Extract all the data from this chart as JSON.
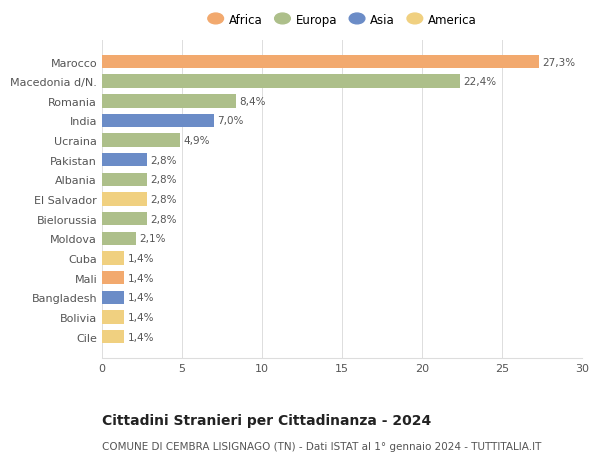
{
  "categories": [
    "Marocco",
    "Macedonia d/N.",
    "Romania",
    "India",
    "Ucraina",
    "Pakistan",
    "Albania",
    "El Salvador",
    "Bielorussia",
    "Moldova",
    "Cuba",
    "Mali",
    "Bangladesh",
    "Bolivia",
    "Cile"
  ],
  "values": [
    27.3,
    22.4,
    8.4,
    7.0,
    4.9,
    2.8,
    2.8,
    2.8,
    2.8,
    2.1,
    1.4,
    1.4,
    1.4,
    1.4,
    1.4
  ],
  "labels": [
    "27,3%",
    "22,4%",
    "8,4%",
    "7,0%",
    "4,9%",
    "2,8%",
    "2,8%",
    "2,8%",
    "2,8%",
    "2,1%",
    "1,4%",
    "1,4%",
    "1,4%",
    "1,4%",
    "1,4%"
  ],
  "continents": [
    "Africa",
    "Europa",
    "Europa",
    "Asia",
    "Europa",
    "Asia",
    "Europa",
    "America",
    "Europa",
    "Europa",
    "America",
    "Africa",
    "Asia",
    "America",
    "America"
  ],
  "continent_colors": {
    "Africa": "#F2A96E",
    "Europa": "#ADBF8A",
    "Asia": "#6B8CC7",
    "America": "#F0D080"
  },
  "legend_order": [
    "Africa",
    "Europa",
    "Asia",
    "America"
  ],
  "xlim": [
    0,
    30
  ],
  "xticks": [
    0,
    5,
    10,
    15,
    20,
    25,
    30
  ],
  "title": "Cittadini Stranieri per Cittadinanza - 2024",
  "subtitle": "COMUNE DI CEMBRA LISIGNAGO (TN) - Dati ISTAT al 1° gennaio 2024 - TUTTITALIA.IT",
  "bg_color": "#ffffff",
  "grid_color": "#dddddd",
  "bar_height": 0.68,
  "label_fontsize": 7.5,
  "ytick_fontsize": 8.0,
  "xtick_fontsize": 8.0,
  "title_fontsize": 10,
  "subtitle_fontsize": 7.5
}
